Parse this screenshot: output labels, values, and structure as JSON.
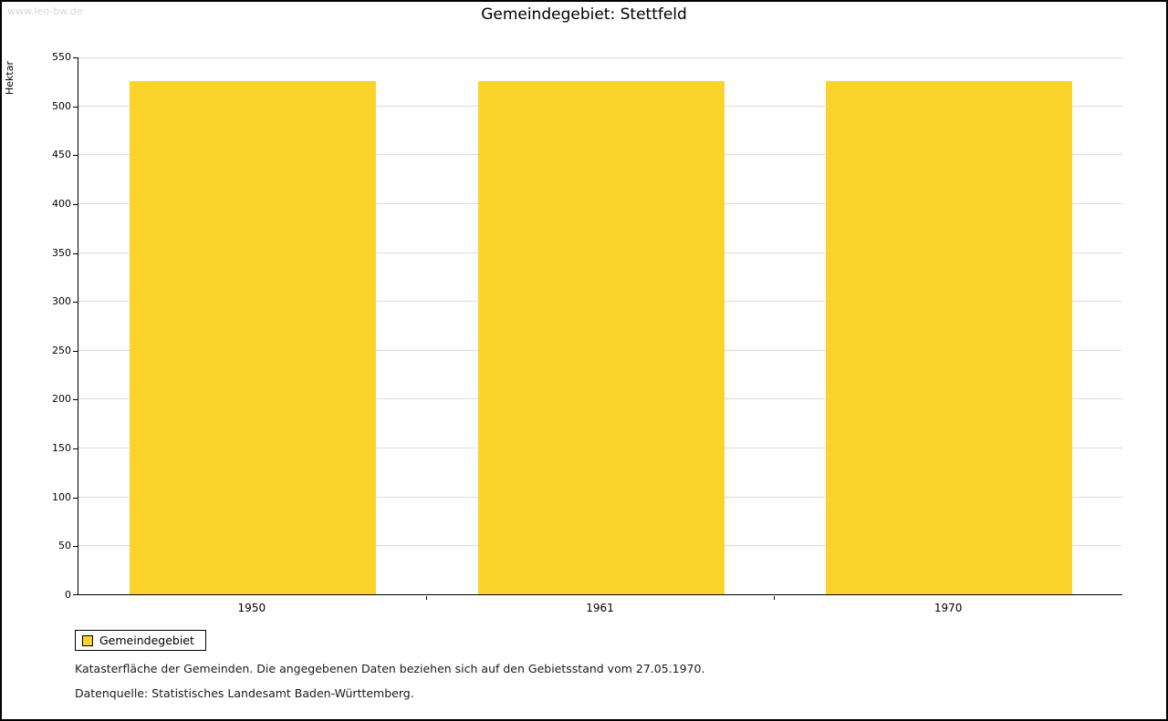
{
  "watermark": "www.leo-bw.de",
  "title": "Gemeindegebiet: Stettfeld",
  "chart_data": {
    "type": "bar",
    "title": "Gemeindegebiet: Stettfeld",
    "categories": [
      "1950",
      "1961",
      "1970"
    ],
    "series": [
      {
        "name": "Gemeindegebiet",
        "values": [
          525,
          525,
          525
        ]
      }
    ],
    "xlabel": "",
    "ylabel": "Hektar",
    "ylim": [
      0,
      550
    ],
    "ytick_step": 50,
    "grid": true,
    "legend_position": "bottom-left"
  },
  "colors": {
    "bar": "#FCD32B",
    "grid": "#DCDCDC",
    "watermark": "#D8D8D8"
  },
  "legend": {
    "label": "Gemeindegebiet"
  },
  "caption": {
    "line1": "Katasterfläche der Gemeinden. Die angegebenen Daten beziehen sich auf den Gebietsstand vom 27.05.1970.",
    "line2": "Datenquelle: Statistisches Landesamt Baden-Württemberg."
  }
}
